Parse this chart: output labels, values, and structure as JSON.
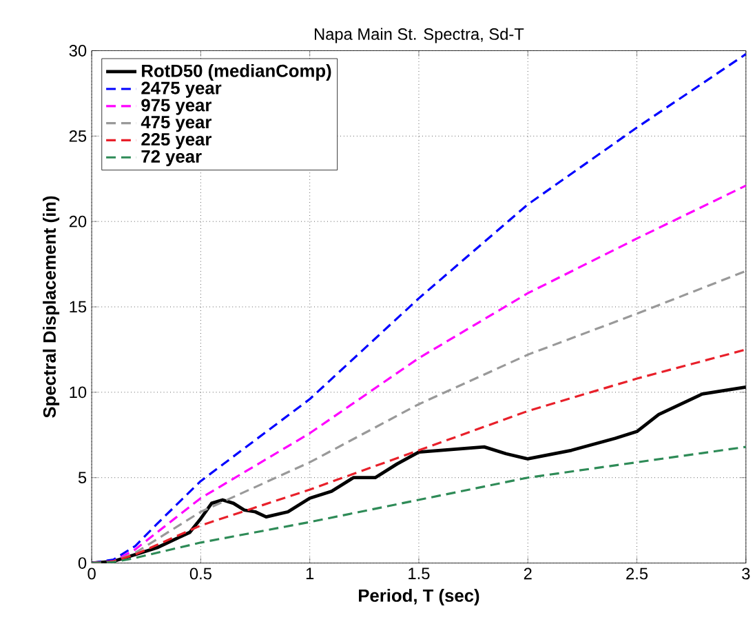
{
  "chart_data": {
    "type": "line",
    "title": "Napa Main St. Spectra, Sd-T",
    "xlabel": "Period, T (sec)",
    "ylabel": "Spectral Displacement (in)",
    "xlim": [
      0,
      3
    ],
    "ylim": [
      0,
      30
    ],
    "xticks": [
      0,
      0.5,
      1,
      1.5,
      2,
      2.5,
      3
    ],
    "yticks": [
      0,
      5,
      10,
      15,
      20,
      25,
      30
    ],
    "grid": true,
    "legend": "top left",
    "series": [
      {
        "name": "RotD50 (medianComp)",
        "color": "#000000",
        "line_style": "solid",
        "x": [
          0,
          0.1,
          0.2,
          0.3,
          0.4,
          0.45,
          0.5,
          0.55,
          0.6,
          0.65,
          0.7,
          0.75,
          0.8,
          0.9,
          1,
          1.1,
          1.2,
          1.3,
          1.4,
          1.5,
          1.6,
          1.8,
          1.9,
          2,
          2.2,
          2.4,
          2.5,
          2.6,
          2.8,
          3
        ],
        "values": [
          0,
          0.1,
          0.5,
          0.9,
          1.5,
          1.8,
          2.6,
          3.5,
          3.7,
          3.5,
          3.1,
          3,
          2.7,
          3,
          3.8,
          4.2,
          5,
          5,
          5.8,
          6.5,
          6.6,
          6.8,
          6.4,
          6.1,
          6.6,
          7.3,
          7.7,
          8.7,
          9.9,
          10.3
        ]
      },
      {
        "name": "2475 year",
        "color": "#0000ff",
        "line_style": "dashed",
        "x": [
          0,
          0.1,
          0.2,
          0.3,
          0.5,
          1,
          1.5,
          2,
          2.5,
          3
        ],
        "values": [
          0,
          0.2,
          1,
          2.3,
          4.8,
          9.6,
          15.5,
          21,
          25.5,
          29.8
        ]
      },
      {
        "name": "975 year",
        "color": "#ff00ff",
        "line_style": "dashed",
        "x": [
          0,
          0.1,
          0.2,
          0.5,
          1,
          1.5,
          2,
          2.5,
          3
        ],
        "values": [
          0,
          0.1,
          0.8,
          3.8,
          7.6,
          12,
          15.8,
          19,
          22.1
        ]
      },
      {
        "name": "475 year",
        "color": "#999999",
        "line_style": "dashed",
        "x": [
          0,
          0.1,
          0.2,
          0.5,
          1,
          1.5,
          2,
          2.5,
          3
        ],
        "values": [
          0,
          0.1,
          0.6,
          3,
          5.9,
          9.3,
          12.2,
          14.6,
          17.1
        ]
      },
      {
        "name": "225 year",
        "color": "#e8202a",
        "line_style": "dashed",
        "x": [
          0,
          0.1,
          0.2,
          0.5,
          1,
          1.5,
          2,
          2.5,
          3
        ],
        "values": [
          0,
          0.1,
          0.5,
          2.2,
          4.3,
          6.6,
          8.9,
          10.8,
          12.5
        ]
      },
      {
        "name": "72 year",
        "color": "#2e8b57",
        "line_style": "dashed",
        "x": [
          0,
          0.1,
          0.2,
          0.5,
          1,
          1.5,
          2,
          2.5,
          3
        ],
        "values": [
          0,
          0.05,
          0.3,
          1.2,
          2.4,
          3.7,
          5,
          5.9,
          6.8
        ]
      }
    ]
  }
}
